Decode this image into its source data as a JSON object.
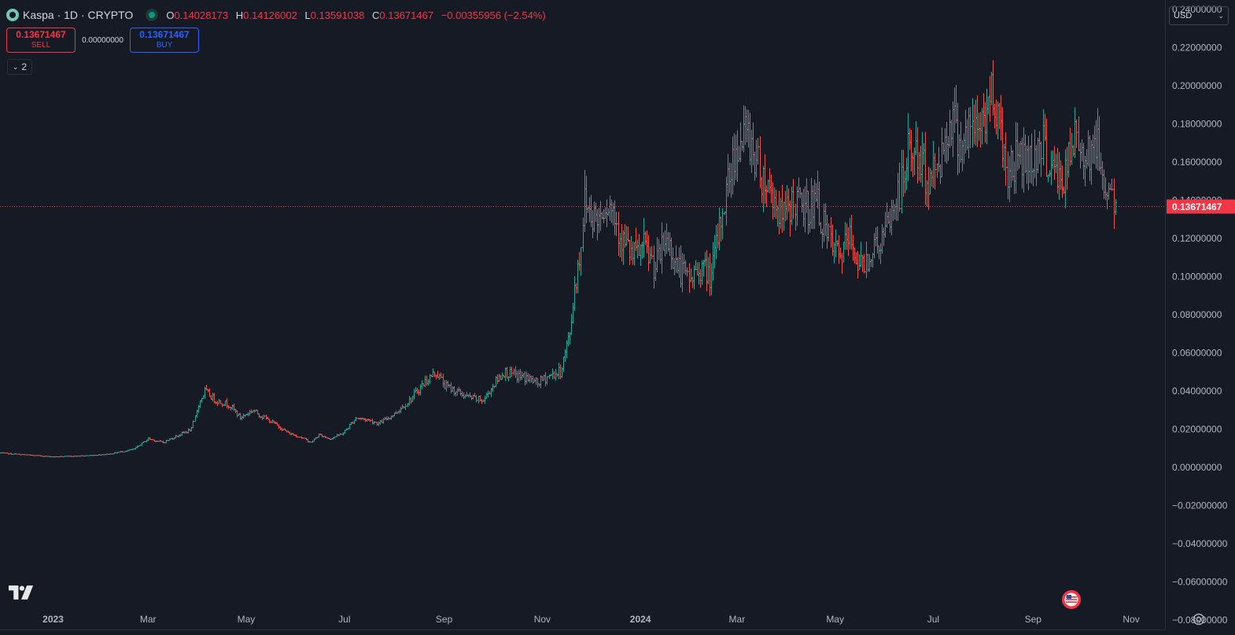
{
  "legend": {
    "symbol": "Kaspa · 1D · CRYPTO",
    "open_key": "O",
    "open": "0.14028173",
    "high_key": "H",
    "high": "0.14126002",
    "low_key": "L",
    "low": "0.13591038",
    "close_key": "C",
    "close": "0.13671467",
    "change": "−0.00355956 (−2.54%)"
  },
  "trade": {
    "sell_price": "0.13671467",
    "sell_label": "SELL",
    "spread": "0.00000000",
    "buy_price": "0.13671467",
    "buy_label": "BUY"
  },
  "indicators_toggle": {
    "count": "2"
  },
  "currency": {
    "label": "USD"
  },
  "colors": {
    "background": "#161a25",
    "up": "#26a69a",
    "down": "#ef5350",
    "last_price": "#f23645",
    "text": "#d1d4dc",
    "axis_text": "#b2b5be"
  },
  "icons": {
    "symbol_logo": "kaspa-logo-icon",
    "status": "market-open-dot-icon",
    "collapse": "chevron-down-icon",
    "currency": "chevron-down-icon",
    "brand": "tradingview-logo-icon",
    "flag": "us-flag-icon",
    "settings": "gear-icon"
  },
  "chart_data": {
    "type": "bar",
    "series_style": "ohlc_bars",
    "title": "",
    "xlabel": "",
    "ylabel": "",
    "ylim": [
      -0.085,
      0.245
    ],
    "xlim": [
      "2022-11-29",
      "2024-11-22"
    ],
    "y_ticks": [
      "0.24000000",
      "0.22000000",
      "0.20000000",
      "0.18000000",
      "0.16000000",
      "0.14000000",
      "0.12000000",
      "0.10000000",
      "0.08000000",
      "0.06000000",
      "0.04000000",
      "0.02000000",
      "0.00000000",
      "−0.02000000",
      "−0.04000000",
      "−0.06000000",
      "−0.08000000"
    ],
    "y_tick_values": [
      0.24,
      0.22,
      0.2,
      0.18,
      0.16,
      0.14,
      0.12,
      0.1,
      0.08,
      0.06,
      0.04,
      0.02,
      0.0,
      -0.02,
      -0.04,
      -0.06,
      -0.08
    ],
    "x_ticks": [
      {
        "label": "2023",
        "date": "2023-01-01",
        "bold": true
      },
      {
        "label": "Mar",
        "date": "2023-03-01",
        "bold": false
      },
      {
        "label": "May",
        "date": "2023-05-01",
        "bold": false
      },
      {
        "label": "Jul",
        "date": "2023-07-01",
        "bold": false
      },
      {
        "label": "Sep",
        "date": "2023-09-01",
        "bold": false
      },
      {
        "label": "Nov",
        "date": "2023-11-01",
        "bold": false
      },
      {
        "label": "2024",
        "date": "2024-01-01",
        "bold": true
      },
      {
        "label": "Mar",
        "date": "2024-03-01",
        "bold": false
      },
      {
        "label": "May",
        "date": "2024-05-01",
        "bold": false
      },
      {
        "label": "Jul",
        "date": "2024-07-01",
        "bold": false
      },
      {
        "label": "Sep",
        "date": "2024-09-01",
        "bold": false
      },
      {
        "label": "Nov",
        "date": "2024-11-01",
        "bold": false
      }
    ],
    "last_price": 0.13671467,
    "last_price_label": "0.13671467",
    "grid": false,
    "close_path": [
      [
        "2022-11-29",
        0.0075
      ],
      [
        "2022-12-15",
        0.0065
      ],
      [
        "2023-01-01",
        0.0055
      ],
      [
        "2023-01-20",
        0.006
      ],
      [
        "2023-02-05",
        0.007
      ],
      [
        "2023-02-20",
        0.0095
      ],
      [
        "2023-03-01",
        0.015
      ],
      [
        "2023-03-10",
        0.013
      ],
      [
        "2023-03-20",
        0.017
      ],
      [
        "2023-03-28",
        0.02
      ],
      [
        "2023-04-01",
        0.033
      ],
      [
        "2023-04-05",
        0.04
      ],
      [
        "2023-04-12",
        0.035
      ],
      [
        "2023-04-20",
        0.033
      ],
      [
        "2023-04-27",
        0.026
      ],
      [
        "2023-05-05",
        0.03
      ],
      [
        "2023-05-12",
        0.026
      ],
      [
        "2023-05-20",
        0.022
      ],
      [
        "2023-05-27",
        0.018
      ],
      [
        "2023-06-03",
        0.016
      ],
      [
        "2023-06-10",
        0.013
      ],
      [
        "2023-06-15",
        0.017
      ],
      [
        "2023-06-22",
        0.015
      ],
      [
        "2023-06-30",
        0.018
      ],
      [
        "2023-07-08",
        0.026
      ],
      [
        "2023-07-15",
        0.025
      ],
      [
        "2023-07-22",
        0.023
      ],
      [
        "2023-08-01",
        0.028
      ],
      [
        "2023-08-10",
        0.035
      ],
      [
        "2023-08-20",
        0.045
      ],
      [
        "2023-08-27",
        0.05
      ],
      [
        "2023-09-01",
        0.043
      ],
      [
        "2023-09-08",
        0.04
      ],
      [
        "2023-09-15",
        0.037
      ],
      [
        "2023-09-25",
        0.035
      ],
      [
        "2023-10-02",
        0.044
      ],
      [
        "2023-10-08",
        0.05
      ],
      [
        "2023-10-15",
        0.048
      ],
      [
        "2023-10-22",
        0.047
      ],
      [
        "2023-10-29",
        0.044
      ],
      [
        "2023-11-05",
        0.048
      ],
      [
        "2023-11-12",
        0.05
      ],
      [
        "2023-11-15",
        0.06
      ],
      [
        "2023-11-18",
        0.07
      ],
      [
        "2023-11-21",
        0.095
      ],
      [
        "2023-11-24",
        0.11
      ],
      [
        "2023-11-27",
        0.14
      ],
      [
        "2023-11-30",
        0.135
      ],
      [
        "2023-12-05",
        0.13
      ],
      [
        "2023-12-10",
        0.14
      ],
      [
        "2023-12-15",
        0.135
      ],
      [
        "2023-12-20",
        0.12
      ],
      [
        "2023-12-27",
        0.11
      ],
      [
        "2024-01-03",
        0.115
      ],
      [
        "2024-01-10",
        0.105
      ],
      [
        "2024-01-17",
        0.12
      ],
      [
        "2024-01-24",
        0.105
      ],
      [
        "2024-01-31",
        0.098
      ],
      [
        "2024-02-07",
        0.105
      ],
      [
        "2024-02-14",
        0.1
      ],
      [
        "2024-02-18",
        0.12
      ],
      [
        "2024-02-24",
        0.15
      ],
      [
        "2024-03-01",
        0.17
      ],
      [
        "2024-03-08",
        0.175
      ],
      [
        "2024-03-15",
        0.155
      ],
      [
        "2024-03-22",
        0.145
      ],
      [
        "2024-03-29",
        0.13
      ],
      [
        "2024-04-05",
        0.14
      ],
      [
        "2024-04-12",
        0.135
      ],
      [
        "2024-04-19",
        0.14
      ],
      [
        "2024-04-26",
        0.12
      ],
      [
        "2024-05-03",
        0.11
      ],
      [
        "2024-05-10",
        0.12
      ],
      [
        "2024-05-17",
        0.105
      ],
      [
        "2024-05-24",
        0.115
      ],
      [
        "2024-05-31",
        0.12
      ],
      [
        "2024-06-07",
        0.138
      ],
      [
        "2024-06-12",
        0.15
      ],
      [
        "2024-06-16",
        0.17
      ],
      [
        "2024-06-22",
        0.16
      ],
      [
        "2024-06-29",
        0.15
      ],
      [
        "2024-07-06",
        0.165
      ],
      [
        "2024-07-12",
        0.185
      ],
      [
        "2024-07-18",
        0.17
      ],
      [
        "2024-07-24",
        0.175
      ],
      [
        "2024-07-30",
        0.18
      ],
      [
        "2024-08-04",
        0.19
      ],
      [
        "2024-08-07",
        0.2
      ],
      [
        "2024-08-11",
        0.18
      ],
      [
        "2024-08-16",
        0.155
      ],
      [
        "2024-08-23",
        0.165
      ],
      [
        "2024-08-30",
        0.16
      ],
      [
        "2024-09-06",
        0.17
      ],
      [
        "2024-09-13",
        0.155
      ],
      [
        "2024-09-20",
        0.15
      ],
      [
        "2024-09-27",
        0.172
      ],
      [
        "2024-10-04",
        0.165
      ],
      [
        "2024-10-10",
        0.17
      ],
      [
        "2024-10-15",
        0.15
      ],
      [
        "2024-10-19",
        0.145
      ],
      [
        "2024-10-22",
        0.1367
      ]
    ]
  }
}
